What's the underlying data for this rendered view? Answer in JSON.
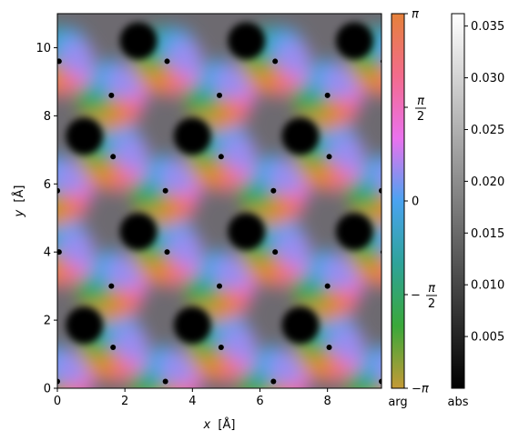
{
  "chart_data": {
    "type": "heatmap",
    "x": {
      "label_var": "x",
      "label_unit": "[Å]",
      "range": [
        0,
        9.6
      ],
      "ticks": [
        0,
        2,
        4,
        6,
        8
      ]
    },
    "y": {
      "label_var": "y",
      "label_unit": "[Å]",
      "range": [
        0,
        11.0
      ],
      "ticks": [
        0,
        2,
        4,
        6,
        8,
        10
      ]
    },
    "lattice": {
      "a": 3.2,
      "dot_rows_y": [
        0.2,
        1.2,
        3.0,
        4.0,
        5.8,
        6.8,
        8.6,
        9.6
      ],
      "dark_spots_y": [
        1.85,
        4.6,
        7.4,
        10.2
      ]
    },
    "arg_colorbar": {
      "label": "arg",
      "range": [
        -3.14159,
        3.14159
      ],
      "ticks": [
        {
          "value": 3.14159,
          "label": "π"
        },
        {
          "value": 1.5708,
          "label": "π/2"
        },
        {
          "value": 0,
          "label": "0"
        },
        {
          "value": -1.5708,
          "label": "−π/2"
        },
        {
          "value": -3.14159,
          "label": "−π"
        }
      ],
      "colors": [
        "#c49a36",
        "#3aa83a",
        "#2ea39a",
        "#4aa3f0",
        "#ea72ee",
        "#f36b8c",
        "#e5813a"
      ]
    },
    "abs_colorbar": {
      "label": "abs",
      "range": [
        0,
        0.0362
      ],
      "ticks": [
        0.005,
        0.01,
        0.015,
        0.02,
        0.025,
        0.03,
        0.035
      ],
      "tick_labels": [
        "0.005",
        "0.010",
        "0.015",
        "0.020",
        "0.025",
        "0.030",
        "0.035"
      ],
      "colors": [
        "#000000",
        "#ffffff"
      ]
    }
  }
}
